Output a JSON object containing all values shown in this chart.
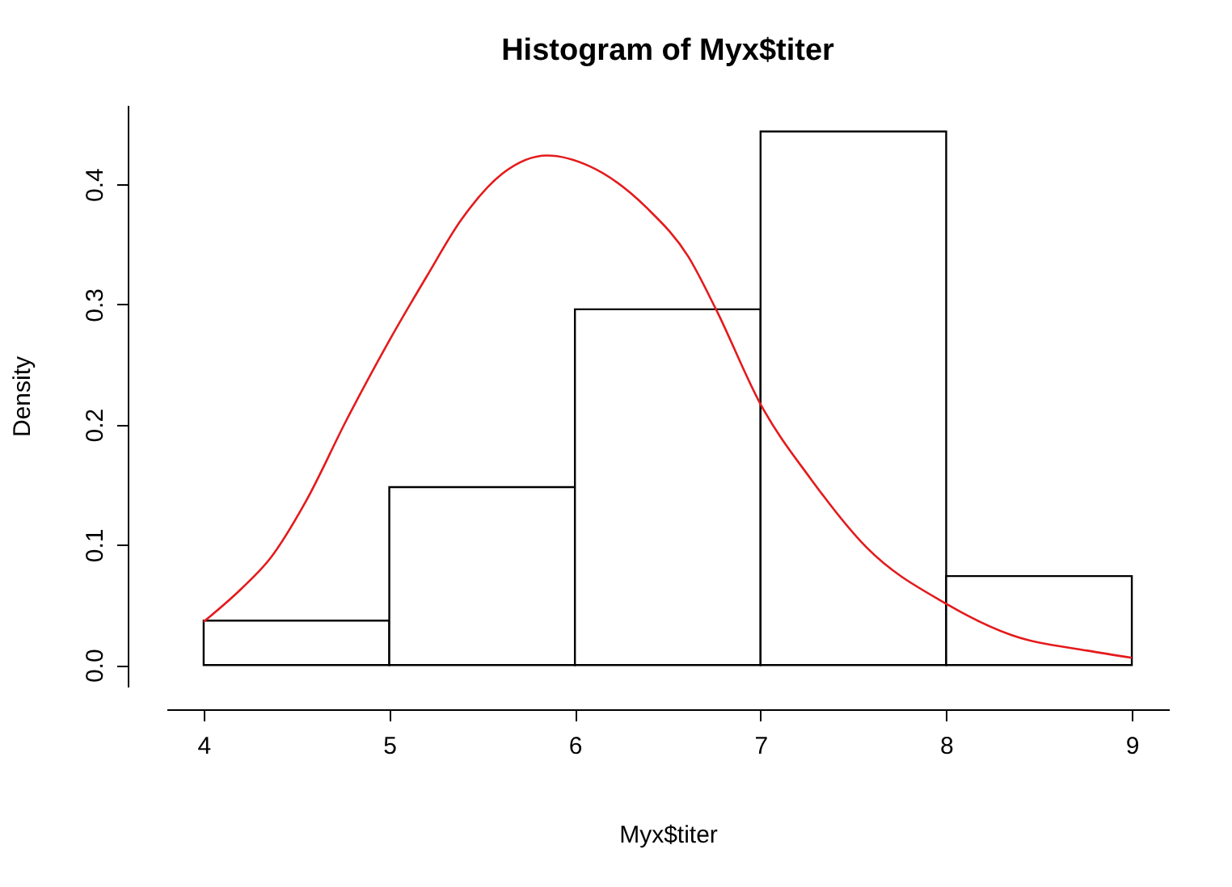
{
  "chart_data": {
    "type": "histogram",
    "title": "Histogram of Myx$titer",
    "xlabel": "Myx$titer",
    "ylabel": "Density",
    "bins": [
      4,
      5,
      6,
      7,
      8,
      9
    ],
    "values": [
      0.037,
      0.148,
      0.296,
      0.444,
      0.074
    ],
    "color": "#ffffff",
    "series": [
      {
        "type": "line",
        "color": "#e41a1c",
        "x": [
          4.0,
          4.2,
          4.36,
          4.55,
          4.77,
          5.0,
          5.2,
          5.39,
          5.61,
          5.85,
          6.08,
          6.39,
          6.61,
          6.76,
          7.0,
          7.27,
          7.57,
          8.0,
          8.35,
          8.76,
          9.0
        ],
        "values": [
          0.036,
          0.063,
          0.089,
          0.136,
          0.204,
          0.27,
          0.323,
          0.371,
          0.409,
          0.424,
          0.415,
          0.38,
          0.34,
          0.296,
          0.217,
          0.155,
          0.098,
          0.051,
          0.025,
          0.012,
          0.006
        ]
      }
    ],
    "xlim": [
      3.8,
      9.2
    ],
    "ylim": [
      -0.018,
      0.466
    ],
    "xticks": [
      4,
      5,
      6,
      7,
      8,
      9
    ],
    "yticks": [
      {
        "value": 0,
        "label": "0.0"
      },
      {
        "value": 0.1,
        "label": "0.1"
      },
      {
        "value": 0.2,
        "label": "0.2"
      },
      {
        "value": 0.3,
        "label": "0.3"
      },
      {
        "value": 0.4,
        "label": "0.4"
      }
    ],
    "grid": false
  }
}
